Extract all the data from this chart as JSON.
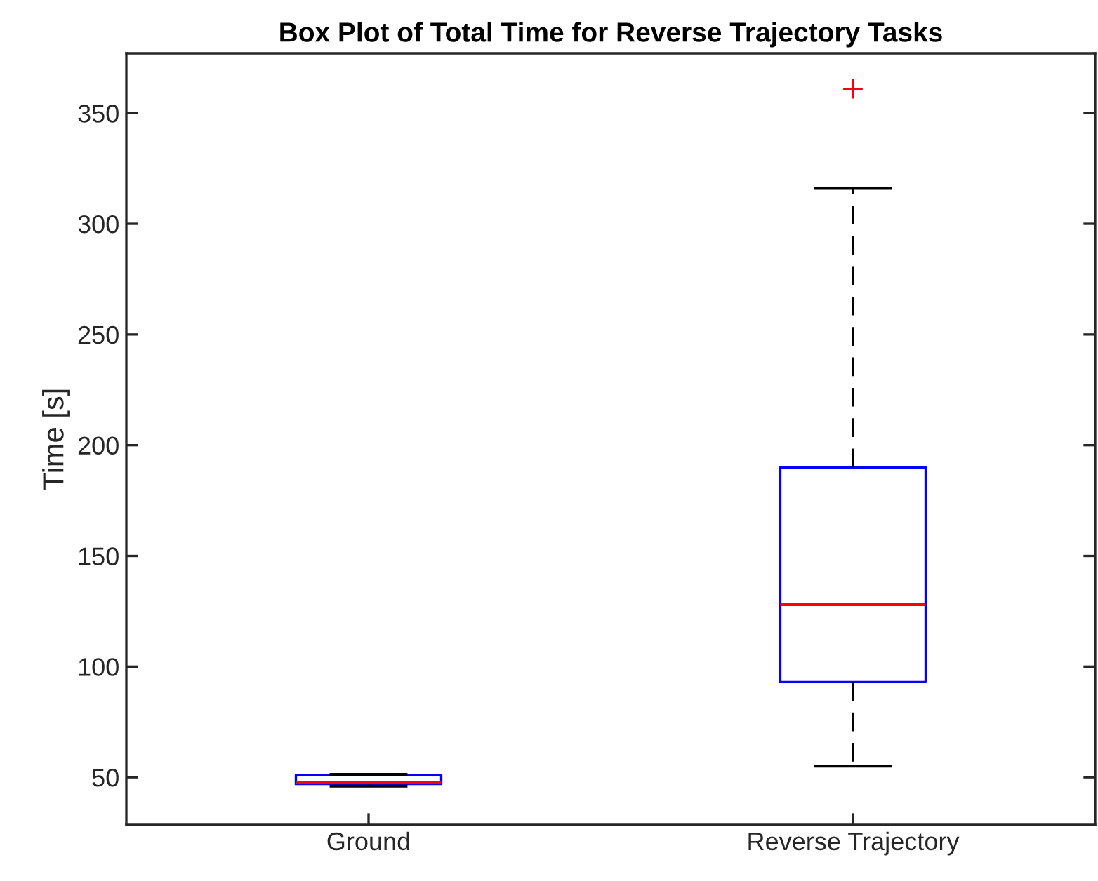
{
  "chart_data": {
    "type": "box",
    "title": "Box Plot of Total Time for Reverse Trajectory Tasks",
    "ylabel": "Time [s]",
    "categories": [
      "Ground",
      "Reverse Trajectory"
    ],
    "boxes": [
      {
        "low": 46,
        "q1": 47,
        "median": 47.5,
        "q3": 51,
        "high": 51.3
      },
      {
        "low": 55,
        "q1": 93,
        "median": 128,
        "q3": 190,
        "high": 316,
        "outliers": [
          361
        ]
      }
    ],
    "color": "#0000ff",
    "marker": "cross",
    "line_style": "dashed",
    "ylim": [
      28.5,
      377
    ],
    "yticks": [
      50,
      100,
      150,
      200,
      250,
      300,
      350
    ],
    "grid": false,
    "legend": false
  }
}
